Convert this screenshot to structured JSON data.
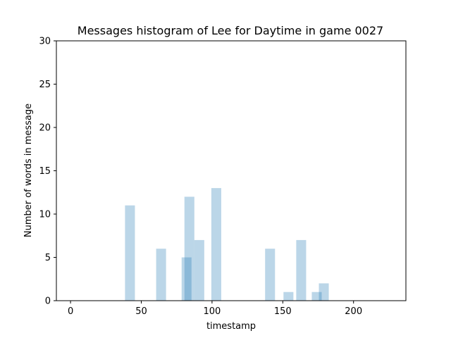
{
  "chart_data": {
    "type": "bar",
    "title": "Messages histogram of Lee for Daytime in game 0027",
    "xlabel": "timestamp",
    "ylabel": "Number of words in message",
    "xlim": [
      -10,
      237
    ],
    "ylim": [
      0,
      30
    ],
    "xticks": [
      0,
      50,
      100,
      150,
      200
    ],
    "yticks": [
      0,
      5,
      10,
      15,
      20,
      25,
      30
    ],
    "grid": false,
    "bar_width": 7,
    "bar_color": "#1f77b4",
    "bar_opacity": 0.3,
    "bars": [
      {
        "x": 42,
        "value": 11
      },
      {
        "x": 64,
        "value": 6
      },
      {
        "x": 82,
        "value": 5
      },
      {
        "x": 84,
        "value": 12
      },
      {
        "x": 91,
        "value": 7
      },
      {
        "x": 103,
        "value": 13
      },
      {
        "x": 141,
        "value": 6
      },
      {
        "x": 154,
        "value": 1
      },
      {
        "x": 163,
        "value": 7
      },
      {
        "x": 174,
        "value": 1
      },
      {
        "x": 179,
        "value": 2
      }
    ]
  }
}
